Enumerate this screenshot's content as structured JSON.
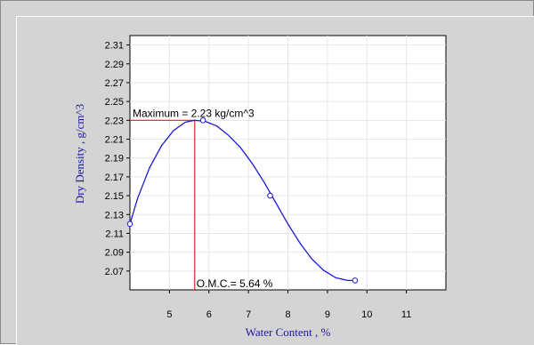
{
  "chart_data": {
    "type": "line",
    "xlabel": "Water Content , %",
    "ylabel": "Dry Density , g/cm^3",
    "xlim": [
      4,
      12
    ],
    "ylim": [
      2.05,
      2.32
    ],
    "x_ticks": [
      5,
      6,
      7,
      8,
      9,
      10,
      11
    ],
    "y_ticks": [
      2.07,
      2.09,
      2.11,
      2.13,
      2.15,
      2.17,
      2.19,
      2.21,
      2.23,
      2.25,
      2.27,
      2.29,
      2.31
    ],
    "series": [
      {
        "points": [
          [
            4.0,
            2.12
          ],
          [
            5.85,
            2.23
          ],
          [
            7.55,
            2.15
          ],
          [
            9.7,
            2.06
          ]
        ],
        "curve": [
          [
            4.0,
            2.12
          ],
          [
            4.2,
            2.148
          ],
          [
            4.5,
            2.18
          ],
          [
            4.8,
            2.203
          ],
          [
            5.1,
            2.219
          ],
          [
            5.4,
            2.228
          ],
          [
            5.64,
            2.23
          ],
          [
            5.9,
            2.229
          ],
          [
            6.2,
            2.224
          ],
          [
            6.5,
            2.214
          ],
          [
            6.8,
            2.201
          ],
          [
            7.1,
            2.184
          ],
          [
            7.4,
            2.164
          ],
          [
            7.7,
            2.142
          ],
          [
            8.0,
            2.12
          ],
          [
            8.3,
            2.1
          ],
          [
            8.6,
            2.083
          ],
          [
            8.9,
            2.071
          ],
          [
            9.2,
            2.063
          ],
          [
            9.5,
            2.06
          ],
          [
            9.7,
            2.06
          ]
        ],
        "color": "#1a1ad0"
      }
    ],
    "maximum": {
      "x": 5.64,
      "y": 2.23,
      "label": "Maximum = 2.23 kg/cm^3"
    },
    "omc": {
      "x": 5.64,
      "label": "O.M.C.= 5.64 %"
    },
    "reference_line_color": "#e02020",
    "grid": true
  }
}
